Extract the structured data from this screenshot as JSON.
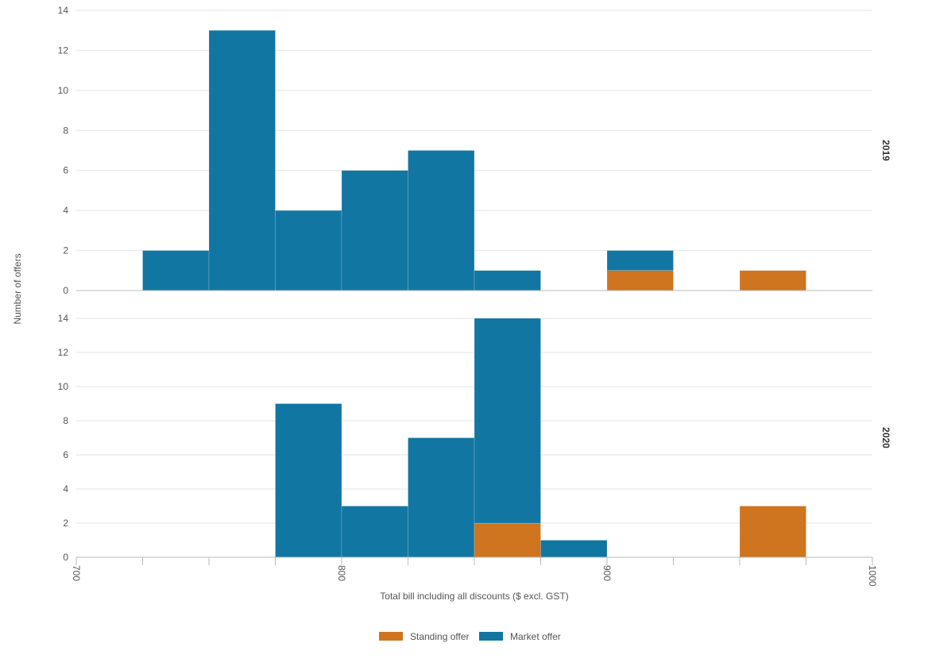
{
  "chart_data": {
    "type": "bar",
    "subtype": "stacked-histogram-faceted",
    "title": "",
    "xlabel": "Total bill including all discounts ($ excl. GST)",
    "ylabel": "Number of offers",
    "xlim": [
      700,
      1000
    ],
    "x_ticks": [
      "700",
      "800",
      "900",
      "1000"
    ],
    "ylim": [
      0,
      14
    ],
    "y_ticks": [
      "0",
      "2",
      "4",
      "6",
      "8",
      "10",
      "12",
      "14"
    ],
    "grid": true,
    "legend_position": "bottom",
    "bin_width": 25,
    "bin_starts": [
      725,
      750,
      775,
      800,
      825,
      850,
      875,
      900,
      925,
      950,
      975
    ],
    "series": [
      {
        "name": "Standing offer",
        "color": "#cf741f"
      },
      {
        "name": "Market offer",
        "color": "#1276a3"
      }
    ],
    "facets": [
      {
        "label": "2019",
        "standing": [
          0,
          0,
          0,
          0,
          0,
          0,
          0,
          1,
          0,
          1,
          0
        ],
        "market": [
          2,
          13,
          4,
          6,
          7,
          1,
          0,
          1,
          0,
          0,
          0
        ]
      },
      {
        "label": "2020",
        "standing": [
          0,
          0,
          0,
          0,
          0,
          2,
          0,
          0,
          0,
          3,
          0
        ],
        "market": [
          0,
          0,
          9,
          3,
          7,
          12,
          1,
          0,
          0,
          0,
          0
        ]
      }
    ]
  }
}
